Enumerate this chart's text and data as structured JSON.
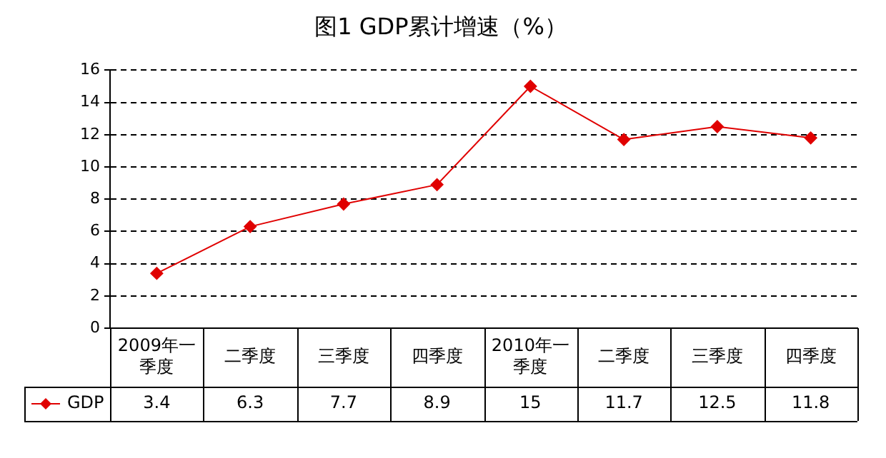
{
  "chart_data": {
    "type": "line",
    "title": "图1 GDP累计增速（%）",
    "categories": [
      "2009年一季度",
      "二季度",
      "三季度",
      "四季度",
      "2010年一季度",
      "二季度",
      "三季度",
      "四季度"
    ],
    "series": [
      {
        "name": "GDP",
        "color": "#e00000",
        "values": [
          3.4,
          6.3,
          7.7,
          8.9,
          15,
          11.7,
          12.5,
          11.8
        ]
      }
    ],
    "ylim": [
      0,
      16
    ],
    "yticks": [
      0,
      2,
      4,
      6,
      8,
      10,
      12,
      14,
      16
    ],
    "grid": "y",
    "marker": "diamond",
    "line_style": "solid",
    "legend": "bottom left",
    "data_labels": true
  }
}
